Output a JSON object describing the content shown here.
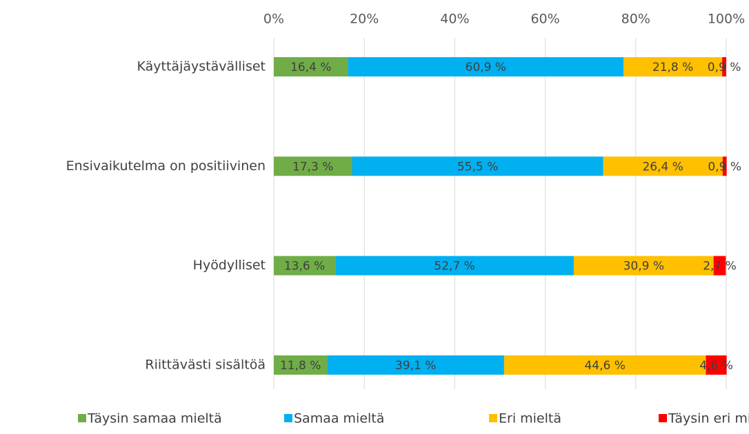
{
  "chart_data": {
    "type": "stacked_barh",
    "categories": [
      "Käyttäjäystävälliset",
      "Ensivaikutelma on positiivinen",
      "Hyödylliset",
      "Riittävästi sisältöä"
    ],
    "series": [
      {
        "name": "Täysin samaa mieltä",
        "color": "#70ad47",
        "values": [
          16.4,
          17.3,
          13.6,
          11.8
        ],
        "value_labels": [
          "16,4 %",
          "17,3 %",
          "13,6 %",
          "11,8 %"
        ]
      },
      {
        "name": "Samaa mieltä",
        "color": "#00b0f0",
        "values": [
          60.9,
          55.5,
          52.7,
          39.1
        ],
        "value_labels": [
          "60,9 %",
          "55,5 %",
          "52,7 %",
          "39,1 %"
        ]
      },
      {
        "name": "Eri mieltä",
        "color": "#ffc000",
        "values": [
          21.8,
          26.4,
          30.9,
          44.6
        ],
        "value_labels": [
          "21,8 %",
          "26,4 %",
          "30,9 %",
          "44,6 %"
        ]
      },
      {
        "name": "Täysin eri mieltä",
        "color": "#ff0000",
        "values": [
          0.9,
          0.9,
          2.7,
          4.6
        ],
        "value_labels": [
          "0,9 %",
          "0,9 %",
          "2,7 %",
          "4,6 %"
        ]
      }
    ],
    "xlim": [
      0,
      100
    ],
    "xticks": [
      {
        "value": 0,
        "label": "0%"
      },
      {
        "value": 20,
        "label": "20%"
      },
      {
        "value": 40,
        "label": "40%"
      },
      {
        "value": 60,
        "label": "60%"
      },
      {
        "value": 80,
        "label": "80%"
      },
      {
        "value": 100,
        "label": "100%"
      }
    ],
    "grid": true,
    "legend": "bottom"
  }
}
